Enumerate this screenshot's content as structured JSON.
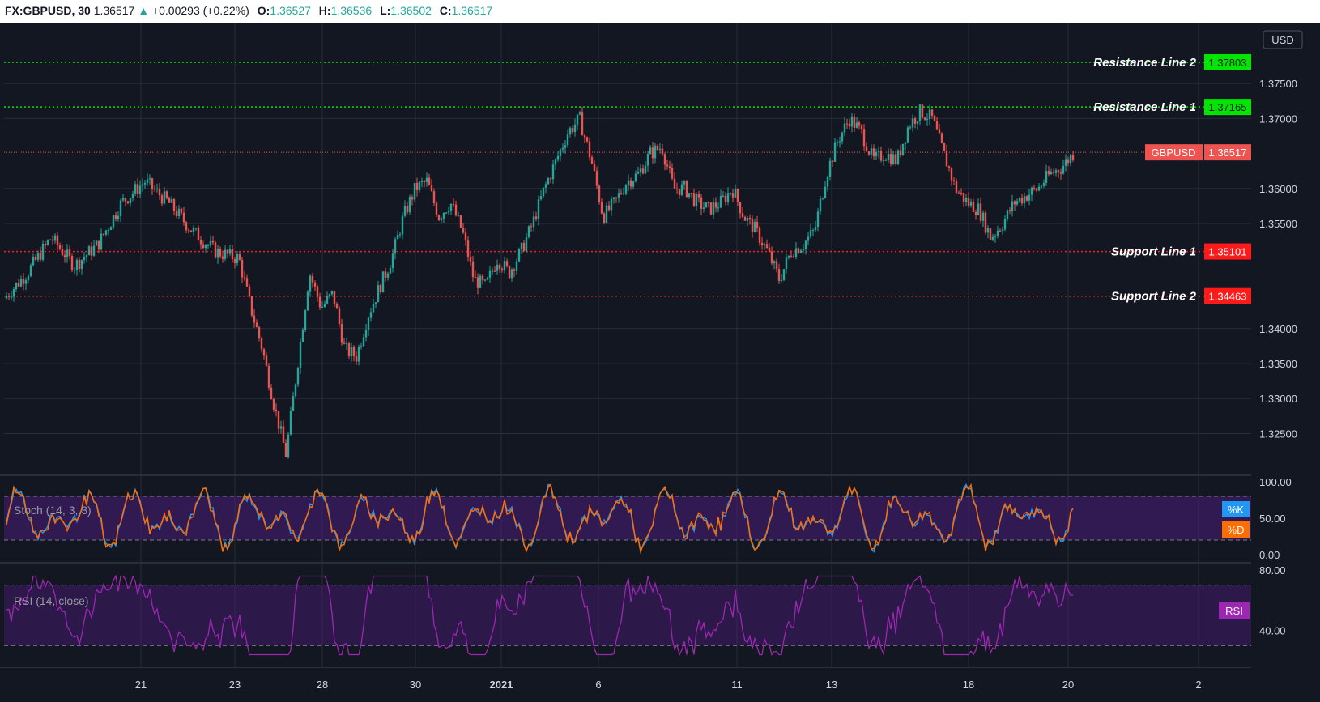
{
  "header": {
    "symbol": "FX:GBPUSD, 30",
    "last": "1.36517",
    "change": "+0.00293 (+0.22%)",
    "open_label": "O:",
    "open": "1.36527",
    "high_label": "H:",
    "high": "1.36536",
    "low_label": "L:",
    "low": "1.36502",
    "close_label": "C:",
    "close": "1.36517"
  },
  "colors": {
    "background": "#131722",
    "grid": "#2a2e39",
    "up": "#26a69a",
    "down": "#ef5350",
    "resistance": "#00e600",
    "support": "#ff1a1a",
    "stoch_k": "#2196f3",
    "stoch_d": "#ff6d00",
    "rsi": "#9c27b0",
    "band": "#4b1b7a"
  },
  "chart_data": {
    "type": "candlestick",
    "currency_label": "USD",
    "y_ticks": [
      "1.37500",
      "1.37000",
      "1.36000",
      "1.35500",
      "1.34000",
      "1.33500",
      "1.33000",
      "1.32500"
    ],
    "x_ticks": [
      "21",
      "23",
      "28",
      "30",
      "2021",
      "6",
      "11",
      "13",
      "18",
      "20",
      "2"
    ],
    "ylim": [
      1.3195,
      1.383
    ],
    "series": [
      {
        "name": "GBPUSD",
        "value": 1.36517,
        "value_label": "1.36517",
        "legend": "GBPUSD"
      }
    ],
    "price_path": [
      [
        0,
        1.3443
      ],
      [
        2,
        1.348
      ],
      [
        4,
        1.353
      ],
      [
        6,
        1.349
      ],
      [
        8,
        1.352
      ],
      [
        10,
        1.358
      ],
      [
        12,
        1.361
      ],
      [
        14,
        1.358
      ],
      [
        16,
        1.354
      ],
      [
        18,
        1.351
      ],
      [
        20,
        1.35
      ],
      [
        21,
        1.343
      ],
      [
        22,
        1.337
      ],
      [
        23,
        1.329
      ],
      [
        24,
        1.322
      ],
      [
        25,
        1.335
      ],
      [
        26,
        1.348
      ],
      [
        27,
        1.343
      ],
      [
        28,
        1.345
      ],
      [
        29,
        1.337
      ],
      [
        30,
        1.336
      ],
      [
        31,
        1.342
      ],
      [
        32,
        1.346
      ],
      [
        33,
        1.35
      ],
      [
        34,
        1.356
      ],
      [
        35,
        1.36
      ],
      [
        36,
        1.361
      ],
      [
        37,
        1.356
      ],
      [
        38,
        1.358
      ],
      [
        39,
        1.354
      ],
      [
        40,
        1.347
      ],
      [
        41,
        1.346
      ],
      [
        42,
        1.35
      ],
      [
        43,
        1.348
      ],
      [
        44,
        1.351
      ],
      [
        45,
        1.355
      ],
      [
        46,
        1.36
      ],
      [
        47,
        1.364
      ],
      [
        48,
        1.368
      ],
      [
        49,
        1.37
      ],
      [
        50,
        1.364
      ],
      [
        51,
        1.356
      ],
      [
        52,
        1.358
      ],
      [
        53,
        1.361
      ],
      [
        54,
        1.362
      ],
      [
        55,
        1.365
      ],
      [
        56,
        1.366
      ],
      [
        57,
        1.36
      ],
      [
        58,
        1.36
      ],
      [
        59,
        1.358
      ],
      [
        60,
        1.357
      ],
      [
        61,
        1.358
      ],
      [
        62,
        1.36
      ],
      [
        63,
        1.356
      ],
      [
        64,
        1.354
      ],
      [
        65,
        1.351
      ],
      [
        66,
        1.347
      ],
      [
        67,
        1.351
      ],
      [
        68,
        1.352
      ],
      [
        69,
        1.354
      ],
      [
        70,
        1.362
      ],
      [
        71,
        1.367
      ],
      [
        72,
        1.37
      ],
      [
        73,
        1.368
      ],
      [
        74,
        1.364
      ],
      [
        75,
        1.365
      ],
      [
        76,
        1.364
      ],
      [
        77,
        1.369
      ],
      [
        78,
        1.371
      ],
      [
        79,
        1.37
      ],
      [
        80,
        1.365
      ],
      [
        81,
        1.36
      ],
      [
        82,
        1.358
      ],
      [
        83,
        1.357
      ],
      [
        84,
        1.353
      ],
      [
        85,
        1.355
      ],
      [
        86,
        1.358
      ],
      [
        87,
        1.359
      ],
      [
        88,
        1.36
      ],
      [
        89,
        1.362
      ],
      [
        90,
        1.363
      ],
      [
        91,
        1.365
      ]
    ],
    "stoch": {
      "label": "Stoch (14, 3, 3)",
      "k_label": "%K",
      "d_label": "%D",
      "y_ticks": [
        "100.00",
        "50.00",
        "0.00"
      ],
      "band": [
        20,
        80
      ],
      "ylim": [
        0,
        100
      ]
    },
    "rsi": {
      "label": "RSI (14, close)",
      "legend": "RSI",
      "y_ticks": [
        "80.00",
        "40.00"
      ],
      "band": [
        30,
        70
      ],
      "ylim": [
        20,
        80
      ]
    },
    "annotations": [
      {
        "name": "Resistance Line 2",
        "value": 1.37803,
        "value_label": "1.37803",
        "kind": "resistance"
      },
      {
        "name": "Resistance Line 1",
        "value": 1.37165,
        "value_label": "1.37165",
        "kind": "resistance"
      },
      {
        "name": "Support Line 1",
        "value": 1.35101,
        "value_label": "1.35101",
        "kind": "support"
      },
      {
        "name": "Support Line 2",
        "value": 1.34463,
        "value_label": "1.34463",
        "kind": "support"
      }
    ]
  }
}
